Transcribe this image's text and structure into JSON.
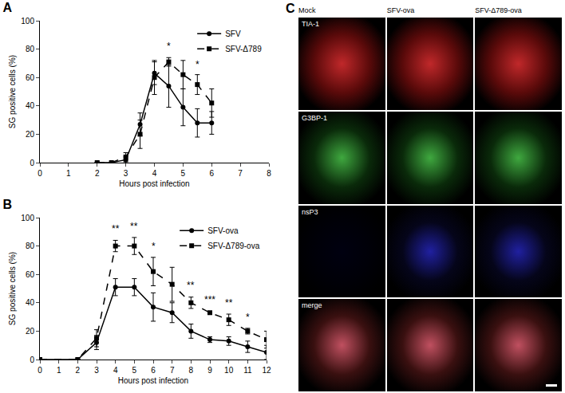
{
  "chart_data": [
    {
      "type": "line",
      "title": "A",
      "x_label": "Hours post infection",
      "y_label": "SG positive cells (%)",
      "xlim": [
        0,
        8
      ],
      "xticks": [
        0,
        1,
        2,
        3,
        4,
        5,
        6,
        7,
        8
      ],
      "ylim": [
        0,
        100
      ],
      "yticks": [
        0,
        20,
        40,
        60,
        80,
        100
      ],
      "legend": "upper right",
      "series": [
        {
          "name": "SFV",
          "color": "#000000",
          "marker": "circle",
          "line_style": "solid",
          "x": [
            2,
            2.5,
            3,
            3.5,
            4,
            4.5,
            5,
            5.5,
            6
          ],
          "values": [
            0,
            0,
            2,
            27,
            63,
            54,
            39,
            28,
            28
          ],
          "errors": [
            0,
            0,
            2,
            8,
            8,
            15,
            13,
            10,
            8
          ]
        },
        {
          "name": "SFV-Δ789",
          "color": "#000000",
          "marker": "square",
          "line_style": "dashed",
          "x": [
            2,
            2.5,
            3,
            3.5,
            4,
            4.5,
            5,
            5.5,
            6
          ],
          "values": [
            0,
            0,
            4,
            20,
            60,
            71,
            62,
            55,
            42
          ],
          "errors": [
            0,
            0,
            3,
            10,
            12,
            3,
            10,
            7,
            10
          ]
        }
      ],
      "annotations": [
        {
          "x": 4.5,
          "y": 77,
          "text": "*"
        },
        {
          "x": 5.5,
          "y": 64,
          "text": "*"
        }
      ]
    },
    {
      "type": "line",
      "title": "B",
      "x_label": "Hours post infection",
      "y_label": "SG positive cells (%)",
      "xlim": [
        0,
        12
      ],
      "xticks": [
        0,
        1,
        2,
        3,
        4,
        5,
        6,
        7,
        8,
        9,
        10,
        11,
        12
      ],
      "ylim": [
        0,
        100
      ],
      "yticks": [
        0,
        20,
        40,
        60,
        80,
        100
      ],
      "legend": "upper right",
      "series": [
        {
          "name": "SFV-ova",
          "color": "#000000",
          "marker": "circle",
          "line_style": "solid",
          "x": [
            0,
            2,
            3,
            4,
            5,
            6,
            7,
            8,
            9,
            10,
            11,
            12
          ],
          "values": [
            0,
            0,
            12,
            51,
            51,
            37,
            33,
            20,
            14,
            13,
            9,
            5
          ],
          "errors": [
            0,
            0,
            5,
            6,
            6,
            10,
            7,
            5,
            2,
            3,
            4,
            5
          ]
        },
        {
          "name": "SFV-Δ789-ova",
          "color": "#000000",
          "marker": "square",
          "line_style": "dashed",
          "x": [
            0,
            2,
            3,
            4,
            5,
            6,
            7,
            8,
            9,
            10,
            11,
            12
          ],
          "values": [
            0,
            0,
            15,
            80,
            80,
            62,
            53,
            40,
            33,
            28,
            20,
            14
          ],
          "errors": [
            0,
            0,
            6,
            4,
            6,
            10,
            12,
            4,
            1,
            4,
            2,
            6
          ]
        }
      ],
      "annotations": [
        {
          "x": 4,
          "y": 87,
          "text": "**"
        },
        {
          "x": 5,
          "y": 89,
          "text": "**"
        },
        {
          "x": 6,
          "y": 75,
          "text": "*"
        },
        {
          "x": 8,
          "y": 47,
          "text": "**"
        },
        {
          "x": 9,
          "y": 37,
          "text": "***"
        },
        {
          "x": 10,
          "y": 35,
          "text": "**"
        },
        {
          "x": 11,
          "y": 25,
          "text": "*"
        }
      ]
    }
  ],
  "image_panel": {
    "label": "C",
    "columns": [
      "Mock",
      "SFV-ova",
      "SFV-Δ789-ova"
    ],
    "rows": [
      "TIA-1",
      "G3BP-1",
      "nsP3",
      "merge"
    ]
  }
}
